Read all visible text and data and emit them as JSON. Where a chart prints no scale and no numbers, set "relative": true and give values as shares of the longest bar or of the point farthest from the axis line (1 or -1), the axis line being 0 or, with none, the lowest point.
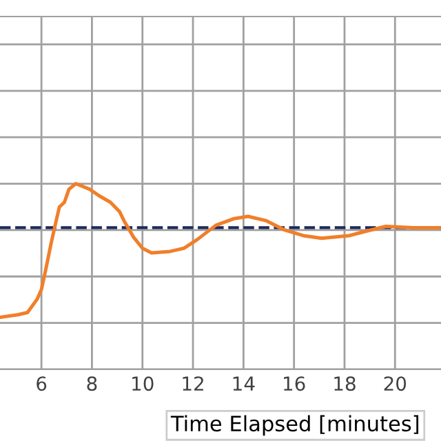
{
  "chart_data": {
    "type": "line",
    "xlabel": "Time Elapsed [minutes]",
    "relative": true,
    "xlim": [
      4.36,
      21.82
    ],
    "xticks": [
      6,
      8,
      10,
      12,
      14,
      16,
      18,
      20
    ],
    "grid": true,
    "line_style": "solid",
    "series": [
      {
        "color": "#f07f2a",
        "x": [
          4.36,
          5.07,
          5.45,
          5.84,
          6.0,
          6.16,
          6.38,
          6.55,
          6.71,
          6.91,
          7.09,
          7.36,
          7.91,
          8.27,
          8.73,
          9.09,
          9.27,
          9.64,
          10.0,
          10.36,
          11.09,
          11.64,
          12.18,
          12.91,
          13.64,
          14.18,
          14.91,
          15.64,
          16.37,
          17.09,
          18.18,
          18.91,
          19.64,
          20.73,
          21.82
        ],
        "values": [
          0.28,
          0.294,
          0.306,
          0.38,
          0.43,
          0.53,
          0.676,
          0.78,
          0.874,
          0.9,
          0.97,
          1.0,
          0.97,
          0.936,
          0.9,
          0.85,
          0.8,
          0.713,
          0.652,
          0.627,
          0.635,
          0.652,
          0.7,
          0.776,
          0.812,
          0.824,
          0.8,
          0.75,
          0.72,
          0.706,
          0.72,
          0.746,
          0.77,
          0.763,
          0.763
        ]
      }
    ],
    "ref_lines": [
      {
        "axis": "y",
        "value": 0.763,
        "color": "#1f2a5a",
        "line_style": "dashed"
      }
    ]
  }
}
